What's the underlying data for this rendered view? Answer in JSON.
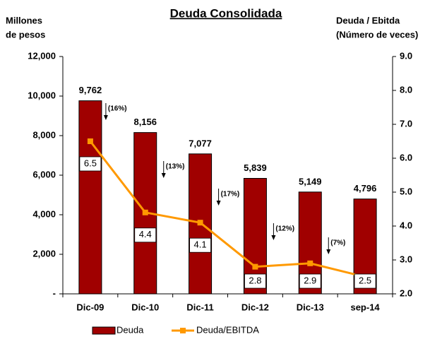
{
  "chart_data": {
    "type": "bar",
    "title": "Deuda Consolidada",
    "y_label": [
      "Millones",
      "de pesos"
    ],
    "y2_label": [
      "Deuda / Ebitda",
      "(Número de veces)"
    ],
    "categories": [
      "Dic-09",
      "Dic-10",
      "Dic-11",
      "Dic-12",
      "Dic-13",
      "sep-14"
    ],
    "series": [
      {
        "name": "Deuda",
        "type": "bar",
        "color": "#a00000",
        "values": [
          9762,
          8156,
          7077,
          5839,
          5149,
          4796
        ],
        "value_labels": [
          "9,762",
          "8,156",
          "7,077",
          "5,839",
          "5,149",
          "4,796"
        ]
      },
      {
        "name": "Deuda/EBITDA",
        "type": "line",
        "axis": "y2",
        "color": "#ff9900",
        "values": [
          6.5,
          4.4,
          4.1,
          2.8,
          2.9,
          2.5
        ]
      }
    ],
    "annotations": [
      "(16%)",
      "(13%)",
      "(17%)",
      "(12%)",
      "(7%)"
    ],
    "ylim": [
      0,
      12000
    ],
    "yticks": [
      {
        "value": 0,
        "label": "-"
      },
      {
        "value": 2000,
        "label": "2,000"
      },
      {
        "value": 4000,
        "label": "4,000"
      },
      {
        "value": 6000,
        "label": "6,000"
      },
      {
        "value": 8000,
        "label": "8,000"
      },
      {
        "value": 10000,
        "label": "10,000"
      },
      {
        "value": 12000,
        "label": "12,000"
      }
    ],
    "y2lim": [
      2,
      9
    ],
    "y2ticks": [
      {
        "value": 2,
        "label": "2.0"
      },
      {
        "value": 3,
        "label": "3.0"
      },
      {
        "value": 4,
        "label": "4.0"
      },
      {
        "value": 5,
        "label": "5.0"
      },
      {
        "value": 6,
        "label": "6.0"
      },
      {
        "value": 7,
        "label": "7.0"
      },
      {
        "value": 8,
        "label": "8.0"
      },
      {
        "value": 9,
        "label": "9.0"
      }
    ],
    "legend": "bottom"
  }
}
